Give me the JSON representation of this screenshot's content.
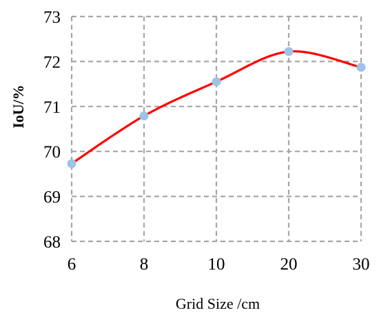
{
  "chart_data": {
    "type": "line",
    "title": "",
    "xlabel": "Grid Size /cm",
    "ylabel": "IoU/%",
    "categories": [
      "6",
      "8",
      "10",
      "20",
      "30"
    ],
    "series": [
      {
        "values": [
          69.73,
          70.79,
          71.55,
          72.22,
          71.87
        ],
        "line_color": "#ff0000",
        "marker_color": "#9dc3e6",
        "smooth": true
      }
    ],
    "ylim": [
      68,
      73
    ],
    "yticks": [
      "68",
      "69",
      "70",
      "71",
      "72",
      "73"
    ],
    "grid": true,
    "grid_color": "#a6a6a6",
    "grid_style": "dashed",
    "legend": "none"
  }
}
